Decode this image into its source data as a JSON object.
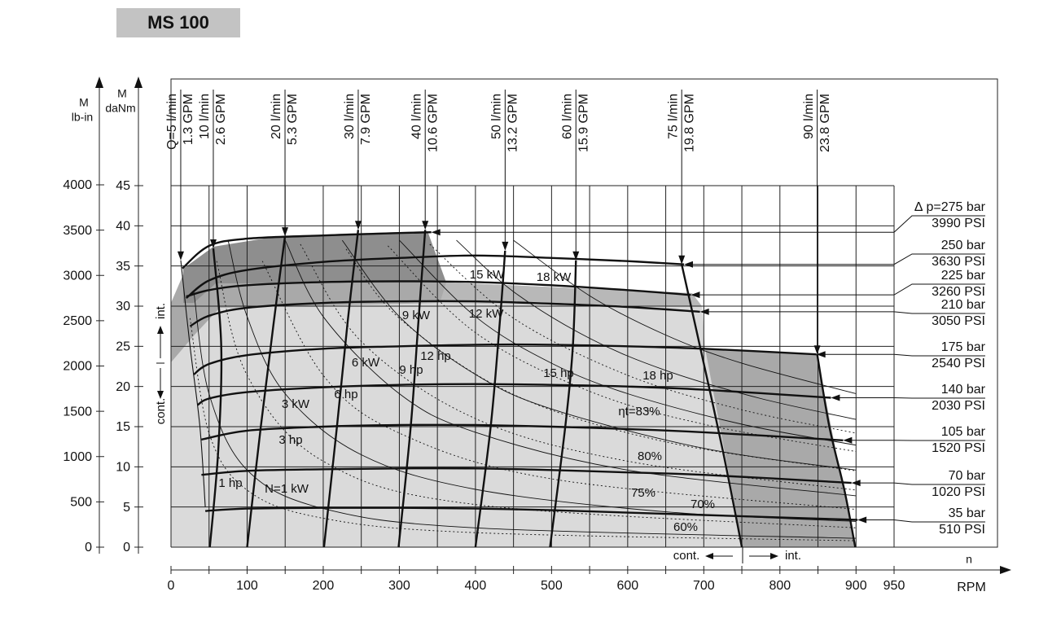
{
  "chart_data": {
    "type": "line",
    "title": "MS 100",
    "x_label": "RPM",
    "x_symbol": "n",
    "y_label": "M",
    "y_unit": "daNm",
    "y2_label": "M",
    "y2_unit": "lb-in",
    "xlim": [
      0,
      950
    ],
    "xticks": [
      0,
      100,
      200,
      300,
      400,
      500,
      600,
      700,
      800,
      900,
      950
    ],
    "x_minor_ticks": [
      50,
      150,
      250,
      350,
      450,
      550,
      650,
      750,
      850
    ],
    "ylim": [
      0,
      45
    ],
    "yticks": [
      0,
      5,
      10,
      15,
      20,
      25,
      30,
      35,
      40,
      45
    ],
    "y2lim": [
      0,
      4000
    ],
    "y2ticks": [
      0,
      500,
      1000,
      1500,
      2000,
      2500,
      3000,
      3500,
      4000
    ],
    "grid": true,
    "line_color": "#111111",
    "series": [
      {
        "kind": "pressure",
        "name": "∆ p=275 bar",
        "psi": "3990 PSI",
        "x": [
          15,
          50,
          100,
          200,
          300,
          342
        ],
        "values": [
          34.7,
          37.5,
          38.4,
          38.8,
          39.1,
          39.2
        ]
      },
      {
        "kind": "pressure",
        "name": "250 bar",
        "psi": "3630 PSI",
        "x": [
          20,
          50,
          100,
          200,
          300,
          400,
          500,
          600,
          674
        ],
        "values": [
          31.0,
          33.2,
          34.5,
          35.5,
          36.0,
          36.3,
          36.0,
          35.6,
          35.2
        ]
      },
      {
        "kind": "pressure",
        "name": "225 bar",
        "psi": "3260 PSI",
        "x": [
          20,
          50,
          100,
          200,
          300,
          400,
          500,
          600,
          683
        ],
        "values": [
          31.2,
          32.0,
          32.6,
          33.0,
          33.1,
          33.0,
          32.6,
          32.0,
          31.4
        ]
      },
      {
        "kind": "pressure",
        "name": "210 bar",
        "psi": "3050 PSI",
        "x": [
          25,
          50,
          100,
          200,
          300,
          400,
          500,
          600,
          695
        ],
        "values": [
          27.5,
          28.8,
          29.8,
          30.4,
          30.6,
          30.6,
          30.3,
          29.9,
          29.3
        ]
      },
      {
        "kind": "pressure",
        "name": "175 bar",
        "psi": "2540 PSI",
        "x": [
          30,
          50,
          100,
          200,
          300,
          400,
          500,
          600,
          700,
          848
        ],
        "values": [
          21.5,
          22.8,
          23.9,
          24.7,
          25.0,
          25.2,
          25.2,
          25.0,
          24.7,
          24.0
        ]
      },
      {
        "kind": "pressure",
        "name": "140 bar",
        "psi": "2030 PSI",
        "x": [
          35,
          50,
          100,
          200,
          300,
          400,
          500,
          600,
          700,
          867
        ],
        "values": [
          17.7,
          18.5,
          19.3,
          19.9,
          20.2,
          20.3,
          20.2,
          20.0,
          19.6,
          18.6
        ]
      },
      {
        "kind": "pressure",
        "name": "105 bar",
        "psi": "1520 PSI",
        "x": [
          40,
          100,
          200,
          300,
          400,
          500,
          600,
          700,
          883
        ],
        "values": [
          13.4,
          14.5,
          15.0,
          15.2,
          15.2,
          15.0,
          14.7,
          14.3,
          13.3
        ]
      },
      {
        "kind": "pressure",
        "name": "70 bar",
        "psi": "1020 PSI",
        "x": [
          40,
          100,
          200,
          300,
          400,
          500,
          600,
          700,
          894
        ],
        "values": [
          9.0,
          9.5,
          9.7,
          9.8,
          9.8,
          9.6,
          9.3,
          9.0,
          8.0
        ]
      },
      {
        "kind": "pressure",
        "name": "35 bar",
        "psi": "510 PSI",
        "x": [
          45,
          100,
          200,
          300,
          400,
          500,
          600,
          700,
          902
        ],
        "values": [
          4.5,
          4.8,
          4.9,
          4.9,
          4.8,
          4.6,
          4.3,
          4.0,
          3.4
        ]
      },
      {
        "kind": "flow",
        "name": "Q=5 l/min",
        "gpm": "1.3 GPM",
        "x": [
          12.8,
          25,
          38,
          45
        ],
        "values": [
          35.7,
          25,
          15,
          5
        ]
      },
      {
        "kind": "flow",
        "name": "10 l/min",
        "gpm": "2.6 GPM",
        "x": [
          55.6,
          66,
          62,
          51
        ],
        "values": [
          37.2,
          25,
          12,
          0
        ]
      },
      {
        "kind": "flow",
        "name": "20 l/min",
        "gpm": "5.3 GPM",
        "x": [
          149.8,
          135,
          118,
          100
        ],
        "values": [
          38.7,
          28,
          15,
          0
        ]
      },
      {
        "kind": "flow",
        "name": "30 l/min",
        "gpm": "7.9 GPM",
        "x": [
          246,
          232,
          218,
          201
        ],
        "values": [
          39.5,
          28,
          15,
          0
        ]
      },
      {
        "kind": "flow",
        "name": "40 l/min",
        "gpm": "10.6 GPM",
        "x": [
          334,
          325,
          315,
          299
        ],
        "values": [
          39.5,
          28,
          15,
          0
        ]
      },
      {
        "kind": "flow",
        "name": "50 l/min",
        "gpm": "13.2 GPM",
        "x": [
          439,
          432,
          420,
          400
        ],
        "values": [
          36.9,
          28,
          15,
          0
        ]
      },
      {
        "kind": "flow",
        "name": "60 l/min",
        "gpm": "15.9 GPM",
        "x": [
          532,
          528,
          518,
          498
        ],
        "values": [
          35.7,
          25,
          15,
          0
        ]
      },
      {
        "kind": "flow",
        "name": "75 l/min",
        "gpm": "19.8 GPM",
        "x": [
          671,
          695,
          725,
          750
        ],
        "values": [
          35.2,
          25,
          12,
          0
        ]
      },
      {
        "kind": "flow",
        "name": "90 l/min",
        "gpm": "23.8 GPM",
        "x": [
          849,
          865,
          885,
          899
        ],
        "values": [
          24,
          15,
          7,
          0
        ]
      },
      {
        "kind": "power",
        "style": "solid",
        "name": "N=1 kW",
        "x": [
          30,
          50,
          100,
          200,
          400,
          900
        ],
        "values": [
          31.8,
          19.1,
          9.6,
          4.8,
          2.4,
          1.1
        ]
      },
      {
        "kind": "power",
        "style": "solid",
        "name": "3 kW",
        "x": [
          75,
          100,
          150,
          250,
          400,
          650,
          900
        ],
        "values": [
          38.2,
          28.7,
          19.1,
          11.5,
          7.2,
          4.4,
          3.2
        ]
      },
      {
        "kind": "power",
        "style": "solid",
        "name": "6 kW",
        "x": [
          150,
          200,
          300,
          400,
          600,
          900
        ],
        "values": [
          38.2,
          28.7,
          19.1,
          14.3,
          9.6,
          6.4
        ]
      },
      {
        "kind": "power",
        "style": "solid",
        "name": "9 kW",
        "x": [
          225,
          300,
          400,
          500,
          700,
          900
        ],
        "values": [
          38.2,
          28.7,
          21.5,
          17.2,
          12.3,
          9.6
        ]
      },
      {
        "kind": "power",
        "style": "solid",
        "name": "12 kW",
        "x": [
          300,
          400,
          500,
          600,
          750,
          900
        ],
        "values": [
          38.2,
          28.7,
          22.9,
          19.1,
          15.3,
          12.7
        ]
      },
      {
        "kind": "power",
        "style": "solid",
        "name": "15 kW",
        "x": [
          375,
          450,
          550,
          650,
          775,
          900
        ],
        "values": [
          38.2,
          31.8,
          26.0,
          22.0,
          18.5,
          15.9
        ]
      },
      {
        "kind": "power",
        "style": "solid",
        "name": "18 kW",
        "x": [
          450,
          550,
          650,
          750,
          900
        ],
        "values": [
          38.2,
          31.3,
          26.4,
          22.9,
          19.1
        ]
      },
      {
        "kind": "power",
        "style": "dotted",
        "name": "1 hp",
        "x": [
          25,
          50,
          100,
          200,
          400,
          900
        ],
        "values": [
          28.5,
          14.2,
          7.1,
          3.6,
          1.8,
          0.8
        ]
      },
      {
        "kind": "power",
        "style": "dotted",
        "name": "3 hp",
        "x": [
          60,
          100,
          200,
          400,
          900
        ],
        "values": [
          35.6,
          21.4,
          10.7,
          5.3,
          2.4
        ]
      },
      {
        "kind": "power",
        "style": "dotted",
        "name": "6 hp",
        "x": [
          120,
          200,
          300,
          500,
          900
        ],
        "values": [
          35.6,
          21.4,
          14.2,
          8.5,
          4.7
        ]
      },
      {
        "kind": "power",
        "style": "dotted",
        "name": "9 hp",
        "x": [
          170,
          250,
          400,
          600,
          900
        ],
        "values": [
          37.7,
          25.6,
          16.0,
          10.7,
          7.1
        ]
      },
      {
        "kind": "power",
        "style": "dotted",
        "name": "12 hp",
        "x": [
          230,
          300,
          450,
          650,
          900
        ],
        "values": [
          37.1,
          28.5,
          19.0,
          13.1,
          9.5
        ]
      },
      {
        "kind": "power",
        "style": "dotted",
        "name": "15 hp",
        "x": [
          285,
          400,
          550,
          700,
          900
        ],
        "values": [
          37.5,
          26.7,
          19.4,
          15.3,
          11.9
        ]
      },
      {
        "kind": "power",
        "style": "dotted",
        "name": "18 hp",
        "x": [
          340,
          450,
          600,
          750,
          900
        ],
        "values": [
          37.7,
          28.5,
          21.4,
          17.1,
          14.2
        ]
      }
    ],
    "efficiency_labels": [
      "ηt=83%",
      "80%",
      "75%",
      "70%",
      "60%"
    ],
    "region_labels": {
      "left_int": "int.",
      "left_cont": "cont.",
      "bottom_cont": "cont.",
      "bottom_int": "int."
    }
  }
}
